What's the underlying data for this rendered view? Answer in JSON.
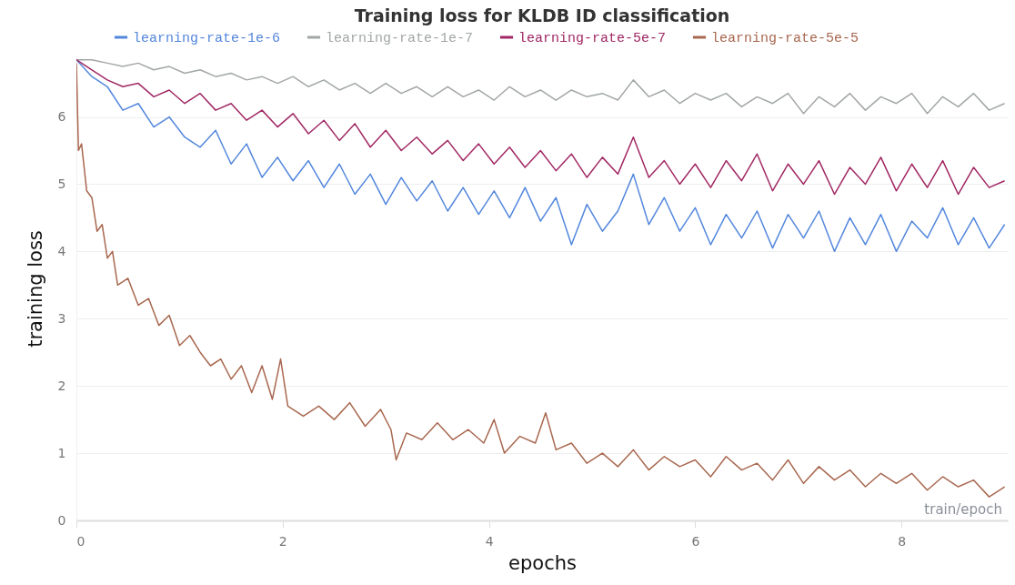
{
  "chart_data": {
    "type": "line",
    "title": "Training loss for KLDB ID classification",
    "xlabel": "epochs",
    "ylabel": "training loss",
    "x": [
      0,
      0.15,
      0.3,
      0.45,
      0.6,
      0.75,
      0.9,
      1.05,
      1.2,
      1.35,
      1.5,
      1.65,
      1.8,
      1.95,
      2.1,
      2.25,
      2.4,
      2.55,
      2.7,
      2.85,
      3.0,
      3.15,
      3.3,
      3.45,
      3.6,
      3.75,
      3.9,
      4.05,
      4.2,
      4.35,
      4.5,
      4.65,
      4.8,
      4.95,
      5.1,
      5.25,
      5.4,
      5.55,
      5.7,
      5.85,
      6.0,
      6.15,
      6.3,
      6.45,
      6.6,
      6.75,
      6.9,
      7.05,
      7.2,
      7.35,
      7.5,
      7.65,
      7.8,
      7.95,
      8.1,
      8.25,
      8.4,
      8.55,
      8.7,
      8.85,
      9.0
    ],
    "series": [
      {
        "name": "learning-rate-1e-6",
        "color": "#5387dd",
        "values": [
          6.85,
          6.6,
          6.45,
          6.1,
          6.2,
          5.85,
          6.0,
          5.7,
          5.55,
          5.8,
          5.3,
          5.6,
          5.1,
          5.4,
          5.05,
          5.35,
          4.95,
          5.3,
          4.85,
          5.15,
          4.7,
          5.1,
          4.75,
          5.05,
          4.6,
          4.95,
          4.55,
          4.9,
          4.5,
          4.95,
          4.45,
          4.8,
          4.1,
          4.7,
          4.3,
          4.6,
          5.15,
          4.4,
          4.8,
          4.3,
          4.65,
          4.1,
          4.55,
          4.2,
          4.6,
          4.05,
          4.55,
          4.2,
          4.6,
          4.0,
          4.5,
          4.1,
          4.55,
          4.0,
          4.45,
          4.2,
          4.65,
          4.1,
          4.5,
          4.05,
          4.4
        ]
      },
      {
        "name": "learning-rate-1e-7",
        "color": "#a2a6a7",
        "values": [
          6.85,
          6.85,
          6.8,
          6.75,
          6.8,
          6.7,
          6.75,
          6.65,
          6.7,
          6.6,
          6.65,
          6.55,
          6.6,
          6.5,
          6.6,
          6.45,
          6.55,
          6.4,
          6.5,
          6.35,
          6.5,
          6.35,
          6.45,
          6.3,
          6.45,
          6.3,
          6.4,
          6.25,
          6.45,
          6.3,
          6.4,
          6.25,
          6.4,
          6.3,
          6.35,
          6.25,
          6.55,
          6.3,
          6.4,
          6.2,
          6.35,
          6.25,
          6.35,
          6.15,
          6.3,
          6.2,
          6.35,
          6.05,
          6.3,
          6.15,
          6.35,
          6.1,
          6.3,
          6.2,
          6.35,
          6.05,
          6.3,
          6.15,
          6.35,
          6.1,
          6.2
        ]
      },
      {
        "name": "learning-rate-5e-7",
        "color": "#a12864",
        "values": [
          6.85,
          6.7,
          6.55,
          6.45,
          6.5,
          6.3,
          6.4,
          6.2,
          6.35,
          6.1,
          6.2,
          5.95,
          6.1,
          5.85,
          6.05,
          5.75,
          5.95,
          5.65,
          5.9,
          5.55,
          5.8,
          5.5,
          5.7,
          5.45,
          5.65,
          5.35,
          5.6,
          5.3,
          5.55,
          5.25,
          5.5,
          5.2,
          5.45,
          5.1,
          5.4,
          5.15,
          5.7,
          5.1,
          5.35,
          5.0,
          5.3,
          4.95,
          5.35,
          5.05,
          5.45,
          4.9,
          5.3,
          5.0,
          5.35,
          4.85,
          5.25,
          5.0,
          5.4,
          4.9,
          5.3,
          4.95,
          5.35,
          4.85,
          5.25,
          4.95,
          5.05
        ]
      },
      {
        "name": "learning-rate-5e-5",
        "color": "#a8674f",
        "x": [
          0,
          0.02,
          0.05,
          0.1,
          0.15,
          0.2,
          0.25,
          0.3,
          0.35,
          0.4,
          0.5,
          0.6,
          0.7,
          0.8,
          0.9,
          1.0,
          1.1,
          1.2,
          1.3,
          1.4,
          1.5,
          1.6,
          1.7,
          1.8,
          1.9,
          1.98,
          2.05,
          2.2,
          2.35,
          2.5,
          2.65,
          2.8,
          2.95,
          3.05,
          3.1,
          3.2,
          3.35,
          3.5,
          3.65,
          3.8,
          3.95,
          4.05,
          4.15,
          4.3,
          4.45,
          4.55,
          4.65,
          4.8,
          4.95,
          5.1,
          5.25,
          5.4,
          5.55,
          5.7,
          5.85,
          6.0,
          6.15,
          6.3,
          6.45,
          6.6,
          6.75,
          6.9,
          7.05,
          7.2,
          7.35,
          7.5,
          7.65,
          7.8,
          7.95,
          8.1,
          8.25,
          8.4,
          8.55,
          8.7,
          8.85,
          9.0
        ],
        "values": [
          6.8,
          5.5,
          5.6,
          4.9,
          4.8,
          4.3,
          4.4,
          3.9,
          4.0,
          3.5,
          3.6,
          3.2,
          3.3,
          2.9,
          3.05,
          2.6,
          2.75,
          2.5,
          2.3,
          2.4,
          2.1,
          2.3,
          1.9,
          2.3,
          1.8,
          2.4,
          1.7,
          1.55,
          1.7,
          1.5,
          1.75,
          1.4,
          1.65,
          1.35,
          0.9,
          1.3,
          1.2,
          1.45,
          1.2,
          1.35,
          1.15,
          1.5,
          1.0,
          1.25,
          1.15,
          1.6,
          1.05,
          1.15,
          0.85,
          1.0,
          0.8,
          1.05,
          0.75,
          0.95,
          0.8,
          0.9,
          0.65,
          0.95,
          0.75,
          0.85,
          0.6,
          0.9,
          0.55,
          0.8,
          0.6,
          0.75,
          0.5,
          0.7,
          0.55,
          0.7,
          0.45,
          0.65,
          0.5,
          0.6,
          0.35,
          0.5
        ]
      }
    ],
    "xlim": [
      0,
      9.03
    ],
    "xticks": [
      0,
      2,
      4,
      6,
      8
    ],
    "ylim": [
      0,
      6.9
    ],
    "yticks": [
      0,
      1,
      2,
      3,
      4,
      5,
      6
    ],
    "grid": "y",
    "legend": "top",
    "line_style": "solid",
    "annotations": [
      "train/epoch"
    ]
  }
}
